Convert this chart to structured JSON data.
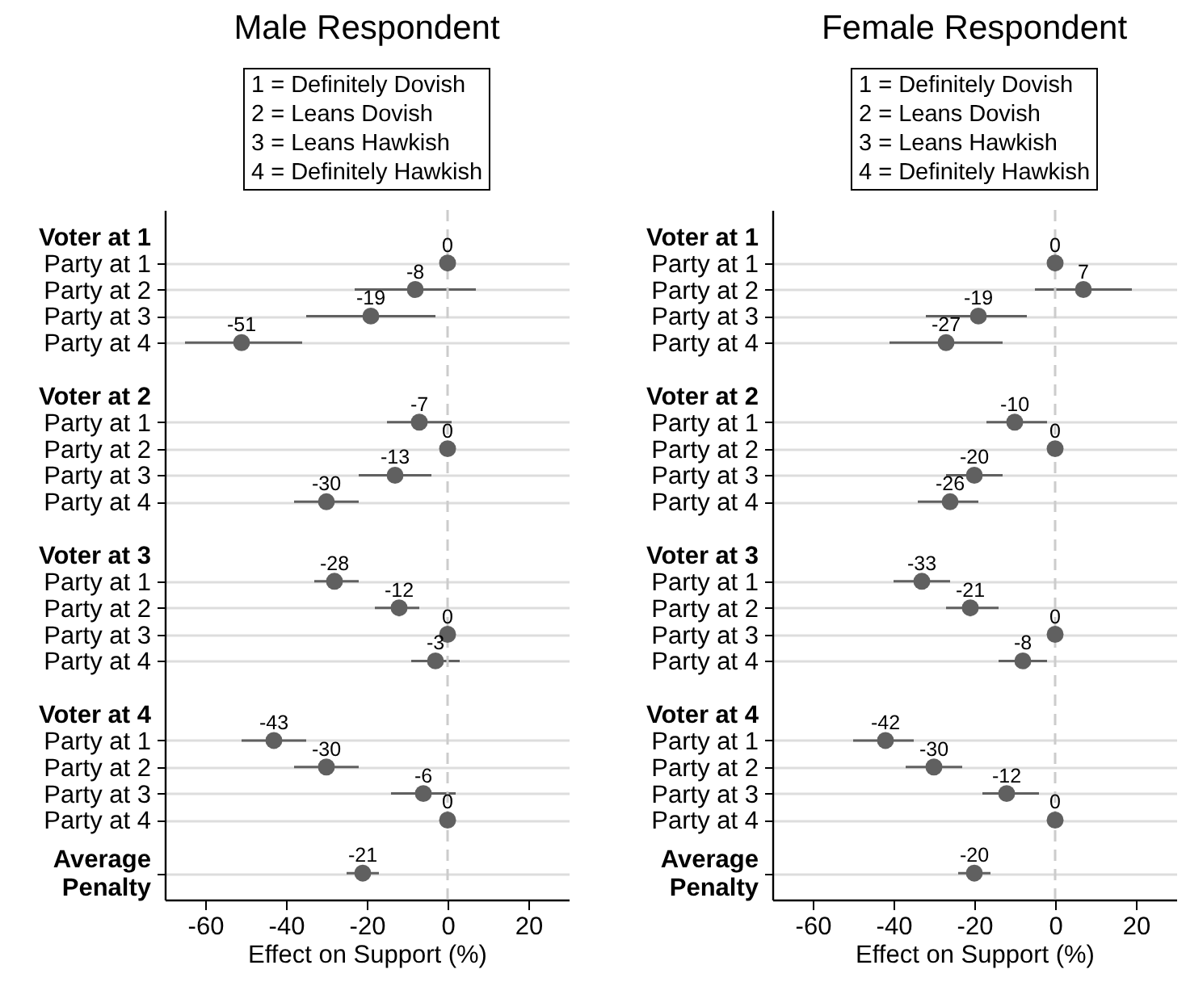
{
  "chart_data": [
    {
      "type": "scatter",
      "orientation": "horizontal",
      "title": "Male Respondent",
      "xlabel": "Effect on Support (%)",
      "annotations": [
        "1 = Definitely Dovish",
        "2 = Leans Dovish",
        "3 = Leans Hawkish",
        "4 = Definitely Hawkish"
      ],
      "categories": [
        "Voter at 1",
        "Party at 1",
        "Party at 2",
        "Party at 3",
        "Party at 4",
        null,
        "Voter at 2",
        "Party at 1",
        "Party at 2",
        "Party at 3",
        "Party at 4",
        null,
        "Voter at 3",
        "Party at 1",
        "Party at 2",
        "Party at 3",
        "Party at 4",
        null,
        "Voter at 4",
        "Party at 1",
        "Party at 2",
        "Party at 3",
        "Party at 4",
        null,
        "Average Penalty"
      ],
      "values": [
        null,
        0,
        -8,
        -19,
        -51,
        null,
        null,
        -7,
        0,
        -13,
        -30,
        null,
        null,
        -28,
        -12,
        0,
        -3,
        null,
        null,
        -43,
        -30,
        -6,
        0,
        null,
        -21
      ],
      "errors": [
        null,
        null,
        [
          -23,
          7
        ],
        [
          -35,
          -3
        ],
        [
          -65,
          -36
        ],
        null,
        null,
        [
          -15,
          1
        ],
        null,
        [
          -22,
          -4
        ],
        [
          -38,
          -22
        ],
        null,
        null,
        [
          -33,
          -22
        ],
        [
          -18,
          -7
        ],
        null,
        [
          -9,
          3
        ],
        null,
        null,
        [
          -51,
          -35
        ],
        [
          -38,
          -22
        ],
        [
          -14,
          2
        ],
        null,
        null,
        [
          -25,
          -17
        ]
      ],
      "color": "#606060",
      "marker": "circle",
      "data_labels": true,
      "grid": "y",
      "xlim": [
        -70,
        30
      ],
      "xticks": [
        -60,
        -40,
        -20,
        0,
        20
      ],
      "ref_lines": [
        {
          "axis": "x",
          "value": 0,
          "color": "#cccccc",
          "line_style": "dashed"
        }
      ]
    },
    {
      "type": "scatter",
      "orientation": "horizontal",
      "title": "Female Respondent",
      "xlabel": "Effect on Support (%)",
      "annotations": [
        "1 = Definitely Dovish",
        "2 = Leans Dovish",
        "3 = Leans Hawkish",
        "4 = Definitely Hawkish"
      ],
      "categories": [
        "Voter at 1",
        "Party at 1",
        "Party at 2",
        "Party at 3",
        "Party at 4",
        null,
        "Voter at 2",
        "Party at 1",
        "Party at 2",
        "Party at 3",
        "Party at 4",
        null,
        "Voter at 3",
        "Party at 1",
        "Party at 2",
        "Party at 3",
        "Party at 4",
        null,
        "Voter at 4",
        "Party at 1",
        "Party at 2",
        "Party at 3",
        "Party at 4",
        null,
        "Average Penalty"
      ],
      "values": [
        null,
        0,
        7,
        -19,
        -27,
        null,
        null,
        -10,
        0,
        -20,
        -26,
        null,
        null,
        -33,
        -21,
        0,
        -8,
        null,
        null,
        -42,
        -30,
        -12,
        0,
        null,
        -20
      ],
      "errors": [
        null,
        null,
        [
          -5,
          19
        ],
        [
          -32,
          -7
        ],
        [
          -41,
          -13
        ],
        null,
        null,
        [
          -17,
          -2
        ],
        null,
        [
          -27,
          -13
        ],
        [
          -34,
          -19
        ],
        null,
        null,
        [
          -40,
          -26
        ],
        [
          -27,
          -14
        ],
        null,
        [
          -14,
          -2
        ],
        null,
        null,
        [
          -50,
          -35
        ],
        [
          -37,
          -23
        ],
        [
          -18,
          -4
        ],
        null,
        null,
        [
          -24,
          -16
        ]
      ],
      "color": "#606060",
      "marker": "circle",
      "data_labels": true,
      "grid": "y",
      "xlim": [
        -70,
        30
      ],
      "xticks": [
        -60,
        -40,
        -20,
        0,
        20
      ],
      "ref_lines": [
        {
          "axis": "x",
          "value": 0,
          "color": "#cccccc",
          "line_style": "dashed"
        }
      ]
    }
  ]
}
